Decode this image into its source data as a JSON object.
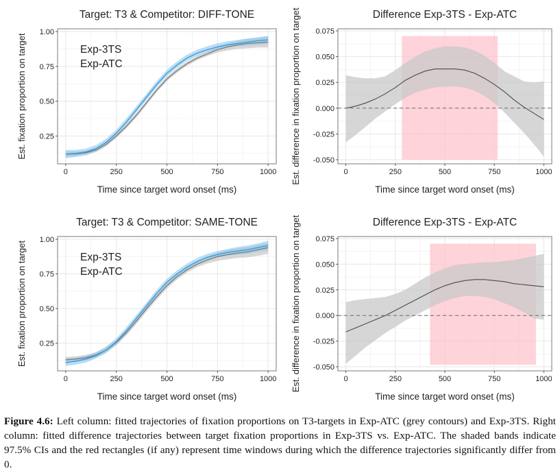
{
  "caption": {
    "label": "Figure 4.6:",
    "text": "Left column: fitted trajectories of fixation proportions on T3-targets in Exp-ATC (grey contours) and Exp-3TS. Right column: fitted difference trajectories between target fixation proportions in Exp-3TS vs. Exp-ATC. The shaded bands indicate 97.5% CIs and the red rectangles (if any) represent time windows during which the difference trajectories significantly differ from 0."
  },
  "colors": {
    "exp3ts": "#3d9bd6",
    "exp3ts_band": "#8cc8ee",
    "expatc": "#7f7f7f",
    "expatc_band": "#bdbdbd",
    "diff_band": "#c8c8c8",
    "sig_rect": "#ffc0cb",
    "grid": "#e6e6e6"
  },
  "chart_data": [
    {
      "type": "line",
      "title": "Target: T3  &  Competitor: DIFF-TONE",
      "xlabel": "Time since target word onset (ms)",
      "ylabel": "Est. fixation proportion on target",
      "xlim": [
        -40,
        1040
      ],
      "ylim": [
        0.05,
        1.02
      ],
      "xticks": [
        0,
        250,
        500,
        750,
        1000
      ],
      "xtick_labels": [
        "0",
        "250",
        "500",
        "750",
        "1000"
      ],
      "yticks": [
        0.25,
        0.5,
        0.75,
        1.0
      ],
      "ytick_labels": [
        "0.25",
        "0.50",
        "0.75",
        "1.00"
      ],
      "legend": {
        "position": "top-left",
        "entries": [
          "Exp-3TS",
          "Exp-ATC"
        ]
      },
      "x": [
        0,
        50,
        100,
        150,
        200,
        250,
        300,
        350,
        400,
        450,
        500,
        550,
        600,
        650,
        700,
        750,
        800,
        850,
        900,
        950,
        1000
      ],
      "series": [
        {
          "name": "Exp-3TS",
          "values": [
            0.12,
            0.125,
            0.135,
            0.16,
            0.205,
            0.27,
            0.35,
            0.44,
            0.53,
            0.62,
            0.7,
            0.76,
            0.81,
            0.845,
            0.87,
            0.89,
            0.905,
            0.915,
            0.925,
            0.935,
            0.94
          ],
          "lower": [
            0.09,
            0.1,
            0.11,
            0.14,
            0.185,
            0.25,
            0.33,
            0.42,
            0.51,
            0.6,
            0.68,
            0.74,
            0.79,
            0.825,
            0.85,
            0.87,
            0.885,
            0.895,
            0.9,
            0.905,
            0.91
          ],
          "upper": [
            0.15,
            0.15,
            0.16,
            0.185,
            0.23,
            0.295,
            0.375,
            0.465,
            0.555,
            0.645,
            0.725,
            0.785,
            0.835,
            0.87,
            0.895,
            0.915,
            0.93,
            0.94,
            0.95,
            0.96,
            0.97
          ]
        },
        {
          "name": "Exp-ATC",
          "values": [
            0.12,
            0.122,
            0.13,
            0.15,
            0.19,
            0.25,
            0.32,
            0.4,
            0.49,
            0.58,
            0.66,
            0.72,
            0.77,
            0.81,
            0.84,
            0.87,
            0.89,
            0.905,
            0.915,
            0.92,
            0.925
          ],
          "lower": [
            0.1,
            0.105,
            0.115,
            0.135,
            0.175,
            0.235,
            0.305,
            0.385,
            0.475,
            0.565,
            0.645,
            0.705,
            0.755,
            0.795,
            0.825,
            0.85,
            0.865,
            0.875,
            0.88,
            0.885,
            0.885
          ],
          "upper": [
            0.14,
            0.14,
            0.145,
            0.165,
            0.205,
            0.265,
            0.335,
            0.415,
            0.505,
            0.595,
            0.675,
            0.735,
            0.785,
            0.825,
            0.855,
            0.89,
            0.915,
            0.935,
            0.95,
            0.955,
            0.965
          ]
        }
      ]
    },
    {
      "type": "line",
      "title": "Difference Exp-3TS - Exp-ATC",
      "xlabel": "Time since target word onset (ms)",
      "ylabel": "Est. difference in fixation proportion on target",
      "xlim": [
        -40,
        1040
      ],
      "ylim": [
        -0.054,
        0.077
      ],
      "xticks": [
        0,
        250,
        500,
        750,
        1000
      ],
      "xtick_labels": [
        "0",
        "250",
        "500",
        "750",
        "1000"
      ],
      "yticks": [
        -0.05,
        -0.025,
        0.0,
        0.025,
        0.05,
        0.075
      ],
      "ytick_labels": [
        "-0.050",
        "-0.025",
        "0.000",
        "0.025",
        "0.050",
        "0.075"
      ],
      "reference_line": 0,
      "significant_window": {
        "x": [
          283,
          767
        ],
        "y": [
          -0.05,
          0.07
        ]
      },
      "x": [
        0,
        50,
        100,
        150,
        200,
        250,
        300,
        350,
        400,
        450,
        500,
        550,
        600,
        650,
        700,
        750,
        800,
        850,
        900,
        950,
        1000
      ],
      "series": [
        {
          "name": "Exp-3TS - Exp-ATC",
          "values": [
            0.0,
            0.002,
            0.005,
            0.009,
            0.014,
            0.02,
            0.027,
            0.032,
            0.036,
            0.038,
            0.038,
            0.038,
            0.037,
            0.034,
            0.029,
            0.023,
            0.016,
            0.008,
            0.001,
            -0.005,
            -0.011
          ],
          "lower": [
            -0.033,
            -0.026,
            -0.018,
            -0.01,
            -0.003,
            0.004,
            0.01,
            0.015,
            0.018,
            0.02,
            0.021,
            0.021,
            0.02,
            0.017,
            0.012,
            0.005,
            -0.004,
            -0.014,
            -0.024,
            -0.035,
            -0.047
          ],
          "upper": [
            0.032,
            0.03,
            0.029,
            0.029,
            0.031,
            0.037,
            0.044,
            0.05,
            0.055,
            0.058,
            0.06,
            0.06,
            0.059,
            0.056,
            0.051,
            0.044,
            0.036,
            0.031,
            0.026,
            0.025,
            0.026
          ]
        }
      ]
    },
    {
      "type": "line",
      "title": "Target: T3  &  Competitor: SAME-TONE",
      "xlabel": "Time since target word onset (ms)",
      "ylabel": "Est. fixation proportion on target",
      "xlim": [
        -40,
        1040
      ],
      "ylim": [
        0.05,
        1.02
      ],
      "xticks": [
        0,
        250,
        500,
        750,
        1000
      ],
      "xtick_labels": [
        "0",
        "250",
        "500",
        "750",
        "1000"
      ],
      "yticks": [
        0.25,
        0.5,
        0.75,
        1.0
      ],
      "ytick_labels": [
        "0.25",
        "0.50",
        "0.75",
        "1.00"
      ],
      "legend": {
        "position": "top-left",
        "entries": [
          "Exp-3TS",
          "Exp-ATC"
        ]
      },
      "x": [
        0,
        50,
        100,
        150,
        200,
        250,
        300,
        350,
        400,
        450,
        500,
        550,
        600,
        650,
        700,
        750,
        800,
        850,
        900,
        950,
        1000
      ],
      "series": [
        {
          "name": "Exp-3TS",
          "values": [
            0.11,
            0.12,
            0.135,
            0.16,
            0.2,
            0.26,
            0.34,
            0.43,
            0.52,
            0.61,
            0.69,
            0.75,
            0.8,
            0.84,
            0.87,
            0.89,
            0.905,
            0.915,
            0.925,
            0.94,
            0.955
          ],
          "lower": [
            0.085,
            0.095,
            0.11,
            0.14,
            0.18,
            0.24,
            0.32,
            0.41,
            0.5,
            0.59,
            0.67,
            0.73,
            0.78,
            0.82,
            0.85,
            0.87,
            0.88,
            0.89,
            0.895,
            0.91,
            0.92
          ],
          "upper": [
            0.135,
            0.145,
            0.16,
            0.185,
            0.225,
            0.285,
            0.365,
            0.455,
            0.545,
            0.635,
            0.715,
            0.775,
            0.825,
            0.865,
            0.895,
            0.915,
            0.93,
            0.945,
            0.955,
            0.97,
            0.99
          ]
        },
        {
          "name": "Exp-ATC",
          "values": [
            0.13,
            0.135,
            0.145,
            0.165,
            0.2,
            0.255,
            0.325,
            0.41,
            0.5,
            0.585,
            0.665,
            0.73,
            0.78,
            0.82,
            0.85,
            0.875,
            0.89,
            0.9,
            0.91,
            0.925,
            0.94
          ],
          "lower": [
            0.11,
            0.115,
            0.125,
            0.145,
            0.18,
            0.235,
            0.305,
            0.39,
            0.48,
            0.565,
            0.645,
            0.71,
            0.76,
            0.8,
            0.825,
            0.845,
            0.855,
            0.865,
            0.87,
            0.88,
            0.895
          ],
          "upper": [
            0.15,
            0.155,
            0.165,
            0.185,
            0.22,
            0.275,
            0.345,
            0.43,
            0.52,
            0.605,
            0.685,
            0.75,
            0.8,
            0.84,
            0.875,
            0.905,
            0.925,
            0.935,
            0.945,
            0.96,
            0.975
          ]
        }
      ]
    },
    {
      "type": "line",
      "title": "Difference Exp-3TS - Exp-ATC",
      "xlabel": "Time since target word onset (ms)",
      "ylabel": "Est. difference in fixation proportion on target",
      "xlim": [
        -40,
        1040
      ],
      "ylim": [
        -0.054,
        0.077
      ],
      "xticks": [
        0,
        250,
        500,
        750,
        1000
      ],
      "xtick_labels": [
        "0",
        "250",
        "500",
        "750",
        "1000"
      ],
      "yticks": [
        -0.05,
        -0.025,
        0.0,
        0.025,
        0.05,
        0.075
      ],
      "ytick_labels": [
        "-0.050",
        "-0.025",
        "0.000",
        "0.025",
        "0.050",
        "0.075"
      ],
      "reference_line": 0,
      "significant_window": {
        "x": [
          425,
          960
        ],
        "y": [
          -0.048,
          0.07
        ]
      },
      "x": [
        0,
        50,
        100,
        150,
        200,
        250,
        300,
        350,
        400,
        450,
        500,
        550,
        600,
        650,
        700,
        750,
        800,
        850,
        900,
        950,
        1000
      ],
      "series": [
        {
          "name": "Exp-3TS - Exp-ATC",
          "values": [
            -0.016,
            -0.012,
            -0.008,
            -0.004,
            0.0,
            0.005,
            0.01,
            0.015,
            0.02,
            0.025,
            0.029,
            0.032,
            0.034,
            0.035,
            0.035,
            0.034,
            0.033,
            0.031,
            0.03,
            0.029,
            0.028
          ],
          "lower": [
            -0.047,
            -0.039,
            -0.031,
            -0.024,
            -0.017,
            -0.011,
            -0.005,
            0.0,
            0.005,
            0.01,
            0.014,
            0.017,
            0.019,
            0.019,
            0.018,
            0.016,
            0.012,
            0.008,
            0.003,
            -0.003,
            -0.004
          ],
          "upper": [
            0.013,
            0.015,
            0.016,
            0.017,
            0.018,
            0.021,
            0.025,
            0.031,
            0.037,
            0.042,
            0.046,
            0.049,
            0.05,
            0.051,
            0.052,
            0.052,
            0.053,
            0.054,
            0.056,
            0.058,
            0.06
          ]
        }
      ]
    }
  ]
}
